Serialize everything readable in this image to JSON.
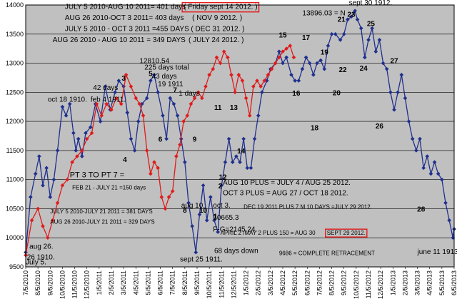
{
  "chart_data": {
    "type": "line",
    "ylim": [
      9500,
      14000
    ],
    "y_ticks": [
      9500,
      10000,
      10500,
      11000,
      11500,
      12000,
      12500,
      13000,
      13500,
      14000
    ],
    "grid": "horizontal",
    "x_ticks": [
      "7/5/2010",
      "8/5/2010",
      "9/5/2010",
      "10/5/2010",
      "11/5/2010",
      "12/5/2010",
      "1/5/2011",
      "2/5/2011",
      "3/5/2011",
      "4/5/2011",
      "5/5/2011",
      "6/5/2011",
      "7/5/2011",
      "8/5/2011",
      "9/5/2011",
      "10/5/2011",
      "11/5/2011",
      "12/5/2011",
      "1/5/2012",
      "2/5/2012",
      "3/5/2012",
      "4/5/2012",
      "5/5/2012",
      "6/5/2012",
      "7/5/2012",
      "8/5/2012",
      "9/5/2012",
      "10/5/2012",
      "11/5/2012",
      "12/5/2012",
      "1/5/2013",
      "2/5/2013",
      "3/5/2013",
      "4/5/2013",
      "5/5/2013",
      "6/5/2013"
    ],
    "series": [
      {
        "color": "#1f2f8f",
        "points": [
          [
            0,
            9750
          ],
          [
            0.4,
            10700
          ],
          [
            0.8,
            11100
          ],
          [
            1.1,
            11400
          ],
          [
            1.4,
            10900
          ],
          [
            1.7,
            11200
          ],
          [
            2.0,
            10700
          ],
          [
            2.3,
            11000
          ],
          [
            2.6,
            11500
          ],
          [
            3.0,
            12250
          ],
          [
            3.3,
            12100
          ],
          [
            3.6,
            12300
          ],
          [
            3.9,
            11800
          ],
          [
            4.1,
            11500
          ],
          [
            4.3,
            11700
          ],
          [
            4.6,
            11400
          ],
          [
            4.9,
            11800
          ],
          [
            5.3,
            11900
          ],
          [
            5.7,
            12300
          ],
          [
            6.1,
            12000
          ],
          [
            6.5,
            12600
          ],
          [
            6.9,
            12200
          ],
          [
            7.3,
            12500
          ],
          [
            7.6,
            12700
          ],
          [
            8.0,
            12600
          ],
          [
            8.3,
            12150
          ],
          [
            8.6,
            11700
          ],
          [
            8.9,
            11500
          ],
          [
            9.2,
            12000
          ],
          [
            9.5,
            12300
          ],
          [
            9.9,
            12400
          ],
          [
            10.2,
            12700
          ],
          [
            10.5,
            12800
          ],
          [
            10.8,
            12500
          ],
          [
            11.2,
            12100
          ],
          [
            11.5,
            11700
          ],
          [
            11.8,
            12400
          ],
          [
            12.1,
            12300
          ],
          [
            12.4,
            12100
          ],
          [
            12.7,
            11700
          ],
          [
            13.0,
            11300
          ],
          [
            13.3,
            10600
          ],
          [
            13.6,
            10200
          ],
          [
            13.9,
            9750
          ],
          [
            14.2,
            10400
          ],
          [
            14.5,
            10900
          ],
          [
            14.8,
            10300
          ],
          [
            15.1,
            10700
          ],
          [
            15.4,
            10300
          ],
          [
            15.7,
            10100
          ],
          [
            16.0,
            10900
          ],
          [
            16.3,
            11300
          ],
          [
            16.6,
            11700
          ],
          [
            16.9,
            11300
          ],
          [
            17.2,
            11400
          ],
          [
            17.5,
            11300
          ],
          [
            17.8,
            11700
          ],
          [
            18.1,
            11200
          ],
          [
            18.4,
            11200
          ],
          [
            18.7,
            11700
          ],
          [
            19.0,
            12100
          ],
          [
            19.3,
            12500
          ],
          [
            19.7,
            12700
          ],
          [
            20.0,
            12900
          ],
          [
            20.4,
            13000
          ],
          [
            20.7,
            13200
          ],
          [
            21.0,
            13000
          ],
          [
            21.3,
            13100
          ],
          [
            21.7,
            12800
          ],
          [
            22.0,
            12700
          ],
          [
            22.3,
            12700
          ],
          [
            22.6,
            12900
          ],
          [
            22.9,
            13100
          ],
          [
            23.2,
            13000
          ],
          [
            23.5,
            12800
          ],
          [
            23.8,
            13000
          ],
          [
            24.1,
            13050
          ],
          [
            24.4,
            12900
          ],
          [
            24.7,
            13300
          ],
          [
            25.0,
            13500
          ],
          [
            25.3,
            13500
          ],
          [
            25.7,
            13400
          ],
          [
            26.0,
            13500
          ],
          [
            26.3,
            13750
          ],
          [
            26.6,
            13800
          ],
          [
            26.9,
            13900
          ],
          [
            27.1,
            13750
          ],
          [
            27.4,
            13600
          ],
          [
            27.7,
            13100
          ],
          [
            28.0,
            13400
          ],
          [
            28.3,
            13600
          ],
          [
            28.6,
            13200
          ],
          [
            28.9,
            13400
          ],
          [
            29.2,
            13000
          ],
          [
            29.5,
            12900
          ],
          [
            29.8,
            12500
          ],
          [
            30.1,
            12200
          ],
          [
            30.4,
            12500
          ],
          [
            30.7,
            12800
          ],
          [
            31.0,
            12400
          ],
          [
            31.3,
            12000
          ],
          [
            31.6,
            11700
          ],
          [
            31.9,
            11500
          ],
          [
            32.2,
            11700
          ],
          [
            32.5,
            11200
          ],
          [
            32.8,
            11400
          ],
          [
            33.1,
            11100
          ],
          [
            33.4,
            11300
          ],
          [
            33.7,
            11100
          ],
          [
            34.0,
            11000
          ],
          [
            34.3,
            10600
          ],
          [
            34.6,
            10300
          ],
          [
            34.9,
            10000
          ],
          [
            35.0,
            10150
          ]
        ]
      },
      {
        "color": "#e01b1b",
        "points": [
          [
            0,
            9700
          ],
          [
            0.5,
            10300
          ],
          [
            1.0,
            10500
          ],
          [
            1.4,
            10200
          ],
          [
            1.8,
            10000
          ],
          [
            2.2,
            10300
          ],
          [
            2.6,
            10600
          ],
          [
            3.0,
            10900
          ],
          [
            3.4,
            11000
          ],
          [
            3.8,
            11300
          ],
          [
            4.2,
            11400
          ],
          [
            4.6,
            11500
          ],
          [
            5.0,
            11700
          ],
          [
            5.4,
            11800
          ],
          [
            5.8,
            12300
          ],
          [
            6.2,
            12100
          ],
          [
            6.6,
            12300
          ],
          [
            7.0,
            12200
          ],
          [
            7.4,
            12400
          ],
          [
            7.8,
            12300
          ],
          [
            8.2,
            12800
          ],
          [
            8.6,
            12600
          ],
          [
            9.0,
            12400
          ],
          [
            9.3,
            12300
          ],
          [
            9.6,
            12100
          ],
          [
            9.9,
            11500
          ],
          [
            10.2,
            11100
          ],
          [
            10.5,
            11300
          ],
          [
            10.8,
            11200
          ],
          [
            11.1,
            10700
          ],
          [
            11.4,
            10500
          ],
          [
            11.7,
            10700
          ],
          [
            12.0,
            10800
          ],
          [
            12.3,
            11400
          ],
          [
            12.6,
            11600
          ],
          [
            12.9,
            12000
          ],
          [
            13.2,
            12100
          ],
          [
            13.5,
            12300
          ],
          [
            13.8,
            12400
          ],
          [
            14.1,
            12500
          ],
          [
            14.4,
            12400
          ],
          [
            14.7,
            12600
          ],
          [
            15.0,
            12800
          ],
          [
            15.3,
            12900
          ],
          [
            15.6,
            13100
          ],
          [
            15.9,
            13000
          ],
          [
            16.2,
            13200
          ],
          [
            16.5,
            13100
          ],
          [
            16.8,
            12800
          ],
          [
            17.1,
            12500
          ],
          [
            17.4,
            12800
          ],
          [
            17.7,
            12700
          ],
          [
            18.0,
            12400
          ],
          [
            18.3,
            12100
          ],
          [
            18.6,
            12600
          ],
          [
            18.9,
            12700
          ],
          [
            19.2,
            12600
          ],
          [
            19.5,
            12700
          ],
          [
            19.8,
            12800
          ],
          [
            20.1,
            12900
          ],
          [
            20.4,
            13000
          ],
          [
            20.7,
            13100
          ],
          [
            21.0,
            13200
          ],
          [
            21.3,
            13250
          ],
          [
            21.6,
            13300
          ],
          [
            21.9,
            13100
          ]
        ]
      }
    ],
    "annotations": [
      {
        "text": "JULY 5 2010-AUG 10 2011= 401 days",
        "x": 3.2,
        "y": 13930,
        "size": 10
      },
      {
        "text": "( Friday sept 14 2012. )",
        "x": 12.9,
        "y": 13930,
        "size": 10,
        "boxed": true
      },
      {
        "text": "AUG 26 2010-OCT 3 2011= 403 days",
        "x": 3.2,
        "y": 13740,
        "size": 10
      },
      {
        "text": "( NOV 9 2012. )",
        "x": 13.6,
        "y": 13740,
        "size": 10
      },
      {
        "text": "JULY 5 2010 - OCT 3 2011 =455 DAYS",
        "x": 3.2,
        "y": 13550,
        "size": 10
      },
      {
        "text": "( DEC 31 2012. )",
        "x": 13.5,
        "y": 13550,
        "size": 10
      },
      {
        "text": "AUG 26 2010 - AUG 10 2011 = 349 DAYS",
        "x": 2.2,
        "y": 13360,
        "size": 10
      },
      {
        "text": "( JULY 24 2012. )",
        "x": 13.3,
        "y": 13360,
        "size": 10
      },
      {
        "text": "13896.03 = N",
        "x": 22.6,
        "y": 13820,
        "size": 10
      },
      {
        "text": "sept 30 1912.",
        "x": 26.4,
        "y": 14000,
        "size": 10
      },
      {
        "text": "12810.54",
        "x": 9.3,
        "y": 13000,
        "size": 10
      },
      {
        "text": "225 days total",
        "x": 9.7,
        "y": 12890,
        "size": 10
      },
      {
        "text": "43 days",
        "x": 10.3,
        "y": 12740,
        "size": 10
      },
      {
        "text": "19 1911",
        "x": 10.8,
        "y": 12600,
        "size": 10
      },
      {
        "text": "42 days",
        "x": 5.5,
        "y": 12540,
        "size": 10
      },
      {
        "text": "oct 18 1910.",
        "x": 1.8,
        "y": 12340,
        "size": 10
      },
      {
        "text": "feb 4 1911.",
        "x": 5.3,
        "y": 12340,
        "size": 10
      },
      {
        "text": "1 days",
        "x": 12.5,
        "y": 12440,
        "size": 10
      },
      {
        "text": "PT 3 TO PT 7 =",
        "x": 3.6,
        "y": 11040,
        "size": 11
      },
      {
        "text": "FEB 21 - JULY 21 =150 days",
        "x": 3.8,
        "y": 10830,
        "size": 8
      },
      {
        "text": "JULY 5 2010-JULY 21 2011 = 381 DAYS",
        "x": 2.0,
        "y": 10420,
        "size": 8
      },
      {
        "text": "AUG 26 2010-JULY 21 2011 = 329 DAYS",
        "x": 2.0,
        "y": 10240,
        "size": 8
      },
      {
        "text": "AUG 10 PLUS =  JULY 4 / AUG 25 2012.",
        "x": 16.1,
        "y": 10910,
        "size": 10
      },
      {
        "text": "OCT 3 PLUS =   AUG 27 / OCT 18 2012.",
        "x": 16.1,
        "y": 10730,
        "size": 10
      },
      {
        "text": "DEC 19 2011 PLUS 7 M 10 DAYS =JULY 29 2012.",
        "x": 17.8,
        "y": 10500,
        "size": 8
      },
      {
        "text": "aug 10.",
        "x": 12.7,
        "y": 10520,
        "size": 10
      },
      {
        "text": "oct 3.",
        "x": 15.3,
        "y": 10520,
        "size": 10
      },
      {
        "text": "10665.3",
        "x": 15.3,
        "y": 10310,
        "size": 10
      },
      {
        "text": "F-G=2145.24.",
        "x": 15.3,
        "y": 10110,
        "size": 10
      },
      {
        "text": "APRIL 2 /MAY 2 PLUS 150 = AUG 30",
        "x": 15.9,
        "y": 10050,
        "size": 8
      },
      {
        "text": "SEPT 29 2012.",
        "x": 24.6,
        "y": 10050,
        "size": 8,
        "boxed": true
      },
      {
        "text": "aug 26.",
        "x": 0.3,
        "y": 9810,
        "size": 10
      },
      {
        "text": "68 days down",
        "x": 15.4,
        "y": 9740,
        "size": 10
      },
      {
        "text": "9686 = COMPLETE RETRACEMENT",
        "x": 20.7,
        "y": 9700,
        "size": 8
      },
      {
        "text": "june 11 1913.",
        "x": 32.0,
        "y": 9720,
        "size": 10
      },
      {
        "text": "26 1910.",
        "x": 0.1,
        "y": 9630,
        "size": 10
      },
      {
        "text": "July 5.",
        "x": 0.0,
        "y": 9540,
        "size": 10
      },
      {
        "text": "sept 25 1911.",
        "x": 12.6,
        "y": 9590,
        "size": 10
      }
    ],
    "point_labels": [
      {
        "text": "1",
        "x": 15.5,
        "y": 10330
      },
      {
        "text": "2",
        "x": 15.9,
        "y": 10850
      },
      {
        "text": "3",
        "x": 8.0,
        "y": 12700
      },
      {
        "text": "4",
        "x": 8.1,
        "y": 11300
      },
      {
        "text": "5",
        "x": 10.2,
        "y": 12780
      },
      {
        "text": "6",
        "x": 11.0,
        "y": 11650
      },
      {
        "text": "7",
        "x": 12.2,
        "y": 12500
      },
      {
        "text": "8",
        "x": 13.0,
        "y": 10430
      },
      {
        "text": "9",
        "x": 13.8,
        "y": 11650
      },
      {
        "text": "10",
        "x": 14.5,
        "y": 10430
      },
      {
        "text": "11",
        "x": 15.7,
        "y": 12200
      },
      {
        "text": "12",
        "x": 16.1,
        "y": 11000
      },
      {
        "text": "13",
        "x": 17.0,
        "y": 12200
      },
      {
        "text": "14",
        "x": 17.6,
        "y": 11450
      },
      {
        "text": "15",
        "x": 21.0,
        "y": 13440
      },
      {
        "text": "16",
        "x": 22.1,
        "y": 12440
      },
      {
        "text": "17",
        "x": 22.9,
        "y": 13400
      },
      {
        "text": "18",
        "x": 23.6,
        "y": 11850
      },
      {
        "text": "19",
        "x": 24.4,
        "y": 13150
      },
      {
        "text": "20",
        "x": 25.4,
        "y": 12450
      },
      {
        "text": "21",
        "x": 25.8,
        "y": 13710
      },
      {
        "text": "22",
        "x": 25.9,
        "y": 12850
      },
      {
        "text": "23",
        "x": 26.6,
        "y": 13800
      },
      {
        "text": "24",
        "x": 27.6,
        "y": 12870
      },
      {
        "text": "25",
        "x": 28.2,
        "y": 13640
      },
      {
        "text": "26",
        "x": 28.9,
        "y": 11880
      },
      {
        "text": "27",
        "x": 30.1,
        "y": 13000
      },
      {
        "text": "28",
        "x": 32.3,
        "y": 10450
      }
    ]
  }
}
